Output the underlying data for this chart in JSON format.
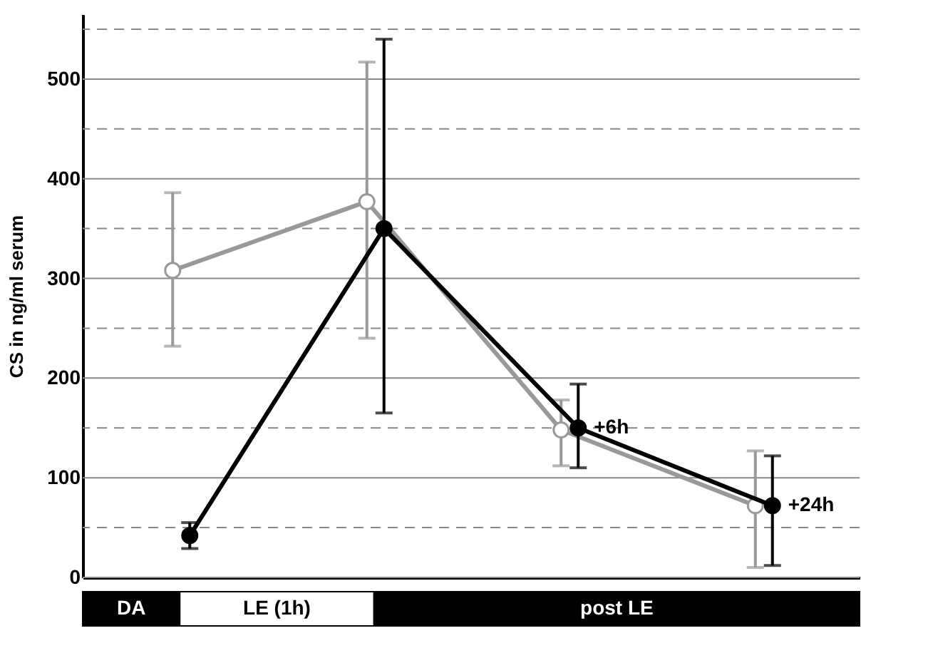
{
  "chart_data": {
    "type": "line",
    "ylabel": "CS in ng/ml serum",
    "categories": [
      null,
      null,
      null,
      null
    ],
    "series": [
      {
        "color": "#999999",
        "values": [
          308,
          377,
          148,
          72
        ],
        "errors": [
          [
            232,
            386
          ],
          [
            240,
            517
          ],
          [
            112,
            178
          ],
          [
            10,
            127
          ]
        ]
      },
      {
        "color": "#000000",
        "values": [
          42,
          350,
          150,
          72
        ],
        "errors": [
          [
            29,
            55
          ],
          [
            165,
            540
          ],
          [
            110,
            194
          ],
          [
            12,
            122
          ]
        ]
      }
    ],
    "ylim": [
      0,
      565
    ],
    "yticks": [
      0,
      {
        "value": 50,
        "label": null
      },
      100,
      {
        "value": 150,
        "label": null
      },
      200,
      {
        "value": 250,
        "label": null
      },
      300,
      {
        "value": 350,
        "label": null
      },
      400,
      {
        "value": 450,
        "label": null
      },
      500,
      {
        "value": 550,
        "label": null
      }
    ],
    "grid": "y",
    "marker": "circle",
    "line_style": "solid",
    "annotations": [
      "DA",
      "LE (1h)",
      "post LE",
      "+6h",
      "+24h"
    ]
  }
}
